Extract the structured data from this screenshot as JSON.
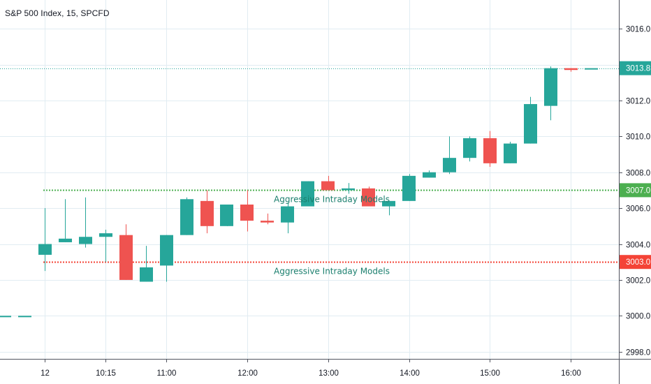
{
  "chart_title": "S&P 500 Index, 15, SPCFD",
  "colors": {
    "up": "#26a69a",
    "down": "#ef5350",
    "green_line": "#4caf50",
    "red_line": "#f44336",
    "last_price_line": "#26a69a",
    "grid": "#e1ecf2",
    "axis_text": "#131722"
  },
  "chart_data": {
    "type": "candlestick",
    "title": "S&P 500 Index, 15, SPCFD",
    "ylim": [
      2997.6,
      3017.6
    ],
    "y_ticks": [
      "2998.0",
      "3000.0",
      "3002.0",
      "3004.0",
      "3006.0",
      "3008.0",
      "3010.0",
      "3012.0",
      "3014.0",
      "3016.0"
    ],
    "x_ticks": [
      {
        "label": "12",
        "index": 2
      },
      {
        "label": "10:15",
        "index": 5
      },
      {
        "label": "11:00",
        "index": 8
      },
      {
        "label": "12:00",
        "index": 12
      },
      {
        "label": "13:00",
        "index": 16
      },
      {
        "label": "14:00",
        "index": 20
      },
      {
        "label": "15:00",
        "index": 24
      },
      {
        "label": "16:00",
        "index": 28
      }
    ],
    "candles": [
      {
        "i": 0,
        "o": 3000.0,
        "h": 3000.0,
        "l": 3000.0,
        "c": 3000.0
      },
      {
        "i": 1,
        "o": 3000.0,
        "h": 3000.0,
        "l": 3000.0,
        "c": 3000.0
      },
      {
        "i": 2,
        "o": 3003.4,
        "h": 3006.0,
        "l": 3002.5,
        "c": 3004.0
      },
      {
        "i": 3,
        "o": 3004.1,
        "h": 3006.5,
        "l": 3004.1,
        "c": 3004.3
      },
      {
        "i": 4,
        "o": 3004.0,
        "h": 3006.6,
        "l": 3003.8,
        "c": 3004.4
      },
      {
        "i": 5,
        "o": 3004.4,
        "h": 3004.8,
        "l": 3003.0,
        "c": 3004.6
      },
      {
        "i": 6,
        "o": 3004.5,
        "h": 3005.1,
        "l": 3002.0,
        "c": 3002.0
      },
      {
        "i": 7,
        "o": 3001.9,
        "h": 3003.9,
        "l": 3001.9,
        "c": 3002.7
      },
      {
        "i": 8,
        "o": 3002.8,
        "h": 3004.5,
        "l": 3001.9,
        "c": 3004.5
      },
      {
        "i": 9,
        "o": 3004.5,
        "h": 3006.6,
        "l": 3004.5,
        "c": 3006.5
      },
      {
        "i": 10,
        "o": 3006.4,
        "h": 3007.0,
        "l": 3004.6,
        "c": 3005.0
      },
      {
        "i": 11,
        "o": 3005.0,
        "h": 3006.2,
        "l": 3005.0,
        "c": 3006.2
      },
      {
        "i": 12,
        "o": 3006.2,
        "h": 3007.0,
        "l": 3004.7,
        "c": 3005.3
      },
      {
        "i": 13,
        "o": 3005.3,
        "h": 3005.7,
        "l": 3005.1,
        "c": 3005.2
      },
      {
        "i": 14,
        "o": 3005.2,
        "h": 3006.3,
        "l": 3004.6,
        "c": 3006.1
      },
      {
        "i": 15,
        "o": 3006.1,
        "h": 3007.5,
        "l": 3006.1,
        "c": 3007.5
      },
      {
        "i": 16,
        "o": 3007.5,
        "h": 3007.8,
        "l": 3007.0,
        "c": 3007.0
      },
      {
        "i": 17,
        "o": 3007.0,
        "h": 3007.4,
        "l": 3006.8,
        "c": 3007.1
      },
      {
        "i": 18,
        "o": 3007.1,
        "h": 3007.2,
        "l": 3006.1,
        "c": 3006.1
      },
      {
        "i": 19,
        "o": 3006.1,
        "h": 3006.4,
        "l": 3005.6,
        "c": 3006.4
      },
      {
        "i": 20,
        "o": 3006.4,
        "h": 3007.9,
        "l": 3006.4,
        "c": 3007.8
      },
      {
        "i": 21,
        "o": 3007.7,
        "h": 3008.1,
        "l": 3007.7,
        "c": 3008.0
      },
      {
        "i": 22,
        "o": 3008.0,
        "h": 3010.0,
        "l": 3007.9,
        "c": 3008.8
      },
      {
        "i": 23,
        "o": 3008.8,
        "h": 3010.0,
        "l": 3008.6,
        "c": 3009.9
      },
      {
        "i": 24,
        "o": 3009.9,
        "h": 3010.3,
        "l": 3008.3,
        "c": 3008.5
      },
      {
        "i": 25,
        "o": 3008.5,
        "h": 3009.7,
        "l": 3008.5,
        "c": 3009.6
      },
      {
        "i": 26,
        "o": 3009.6,
        "h": 3012.2,
        "l": 3009.6,
        "c": 3011.8
      },
      {
        "i": 27,
        "o": 3011.7,
        "h": 3013.9,
        "l": 3010.9,
        "c": 3013.8
      },
      {
        "i": 28,
        "o": 3013.8,
        "h": 3013.8,
        "l": 3013.6,
        "c": 3013.7
      },
      {
        "i": 29,
        "o": 3013.8,
        "h": 3013.8,
        "l": 3013.8,
        "c": 3013.8
      }
    ],
    "levels": [
      {
        "price": 3007.0,
        "label_text": "3007.0",
        "annotation": "Aggressive Intraday Models",
        "color": "#4caf50",
        "style": "dotted"
      },
      {
        "price": 3003.0,
        "label_text": "3003.0",
        "annotation": "Aggressive Intraday Models",
        "color": "#f44336",
        "style": "dotted"
      }
    ],
    "last_price": {
      "price": 3013.8,
      "label_text": "3013.8",
      "color": "#26a69a"
    },
    "grid": true
  }
}
